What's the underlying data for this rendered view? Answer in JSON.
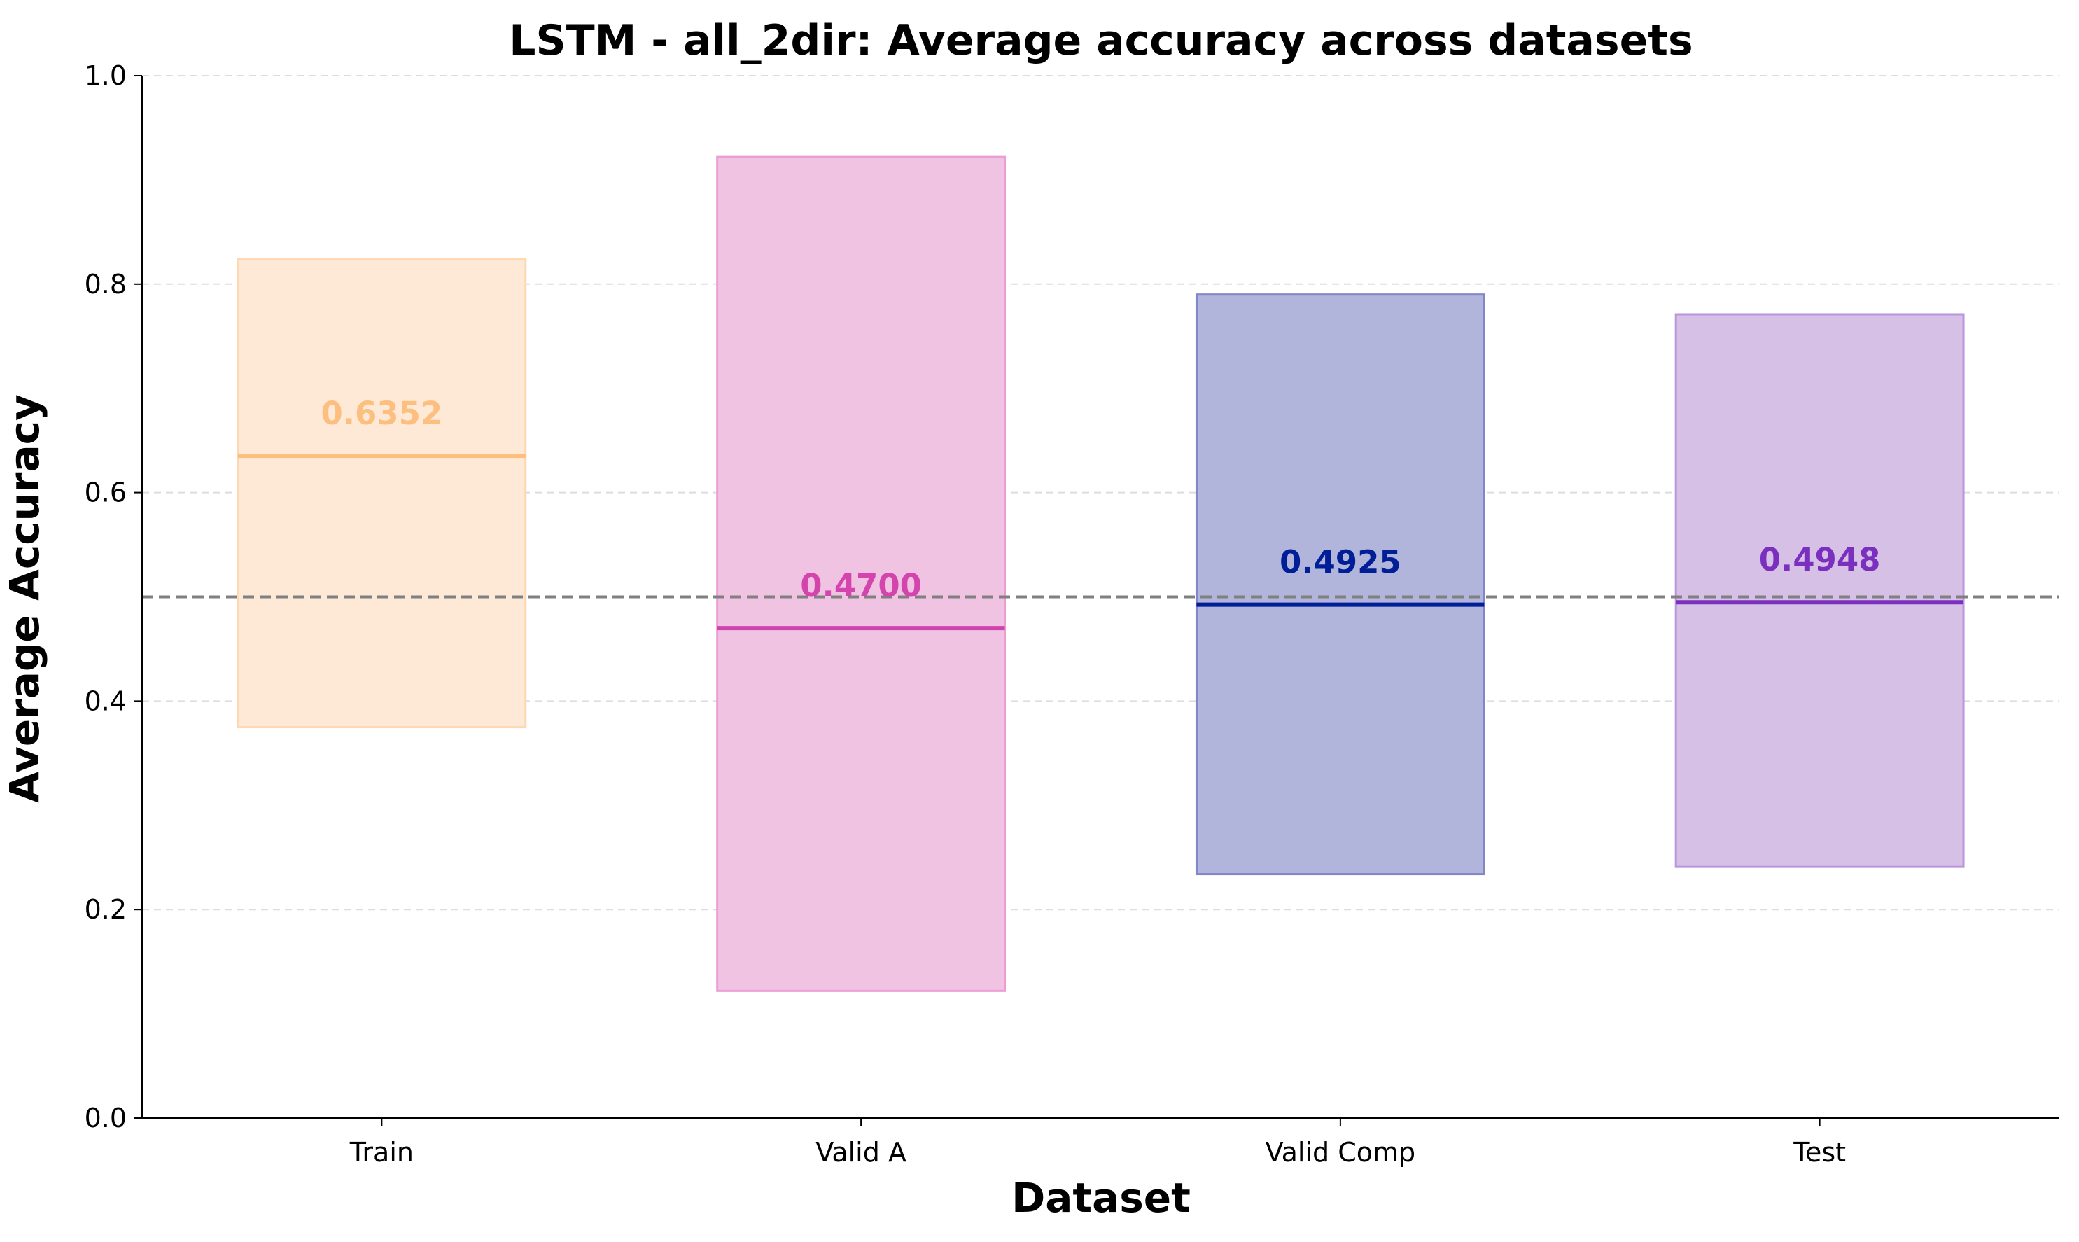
{
  "chart_data": {
    "type": "bar",
    "title": "LSTM - all_2dir: Average accuracy across datasets",
    "xlabel": "Dataset",
    "ylabel": "Average Accuracy",
    "ylim": [
      0,
      1.0
    ],
    "yticks": [
      0.0,
      0.2,
      0.4,
      0.6,
      0.8,
      1.0
    ],
    "ytick_labels": [
      "0.0",
      "0.2",
      "0.4",
      "0.6",
      "0.8",
      "1.0"
    ],
    "reference_line": 0.5,
    "grid": true,
    "categories": [
      "Train",
      "Valid A",
      "Valid Comp",
      "Test"
    ],
    "values": [
      0.6352,
      0.47,
      0.4925,
      0.4948
    ],
    "value_labels": [
      "0.6352",
      "0.4700",
      "0.4925",
      "0.4948"
    ],
    "range_low": [
      0.375,
      0.122,
      0.234,
      0.241
    ],
    "range_high": [
      0.824,
      0.922,
      0.79,
      0.771
    ],
    "colors": {
      "fill": [
        "#fde9d6",
        "#f1c3e3",
        "#b2b5db",
        "#d6c0e6"
      ],
      "edge": [
        "#fed8b3",
        "#ec9dd4",
        "#8086c8",
        "#b996dc"
      ],
      "mean_line": [
        "#fdbf80",
        "#cf43ad",
        "#001e96",
        "#7b2fbf"
      ],
      "label": [
        "#fdbf80",
        "#d444ad",
        "#001e96",
        "#7b2fbf"
      ],
      "reference_line": "#808080",
      "grid": "#dddddd",
      "axis": "#000000"
    }
  }
}
